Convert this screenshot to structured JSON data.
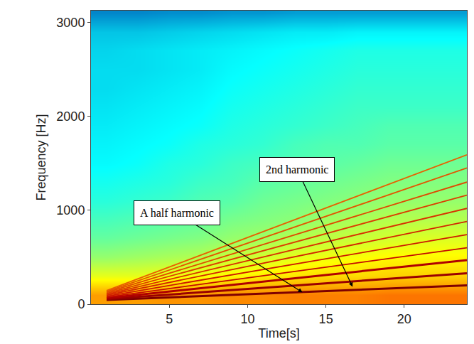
{
  "chart_data": {
    "type": "heatmap",
    "xlabel": "Time[s]",
    "ylabel": "Frequency [Hz]",
    "xlim": [
      0,
      24
    ],
    "ylim": [
      0,
      3125
    ],
    "xticks": [
      5,
      10,
      15,
      20
    ],
    "yticks": [
      0,
      1000,
      2000,
      3000
    ],
    "grid": false,
    "color": "Jet",
    "heatmap": {
      "x": [
        1,
        3,
        5,
        7,
        9,
        11,
        13,
        15,
        17,
        19,
        21,
        23
      ],
      "y": [
        100,
        300,
        500,
        700,
        900,
        1100,
        1300,
        1500,
        1700,
        1900,
        2100,
        2300,
        2500,
        2700,
        2900,
        3100
      ],
      "zlim": [
        0,
        10
      ],
      "z": [
        [
          7.2,
          7.2,
          7.3,
          7.3,
          7.4,
          7.4,
          7.5,
          7.5,
          7.5,
          7.6,
          7.6,
          7.6
        ],
        [
          6.0,
          6.0,
          6.1,
          6.2,
          6.3,
          6.4,
          6.5,
          6.6,
          6.6,
          6.7,
          6.7,
          6.7
        ],
        [
          5.2,
          5.3,
          5.4,
          5.5,
          5.7,
          5.8,
          6.0,
          6.1,
          6.2,
          6.3,
          6.3,
          6.3
        ],
        [
          4.7,
          4.8,
          4.9,
          5.0,
          5.2,
          5.3,
          5.5,
          5.6,
          5.7,
          5.8,
          5.9,
          5.9
        ],
        [
          4.4,
          4.5,
          4.6,
          4.7,
          4.9,
          5.0,
          5.1,
          5.3,
          5.4,
          5.5,
          5.5,
          5.5
        ],
        [
          4.1,
          4.2,
          4.3,
          4.5,
          4.6,
          4.8,
          4.9,
          5.0,
          5.1,
          5.2,
          5.2,
          5.2
        ],
        [
          3.9,
          4.0,
          4.1,
          4.3,
          4.4,
          4.6,
          4.7,
          4.8,
          4.9,
          5.0,
          5.0,
          5.0
        ],
        [
          3.7,
          3.8,
          4.0,
          4.1,
          4.3,
          4.4,
          4.5,
          4.6,
          4.7,
          4.8,
          4.8,
          4.8
        ],
        [
          3.6,
          3.7,
          3.8,
          4.0,
          4.1,
          4.2,
          4.4,
          4.5,
          4.5,
          4.6,
          4.6,
          4.6
        ],
        [
          3.5,
          3.6,
          3.7,
          3.8,
          4.0,
          4.1,
          4.2,
          4.3,
          4.4,
          4.5,
          4.5,
          4.5
        ],
        [
          3.4,
          3.5,
          3.6,
          3.7,
          3.9,
          4.0,
          4.1,
          4.2,
          4.3,
          4.3,
          4.3,
          4.3
        ],
        [
          3.3,
          3.4,
          3.5,
          3.6,
          3.8,
          3.9,
          4.0,
          4.1,
          4.2,
          4.2,
          4.2,
          4.2
        ],
        [
          3.3,
          3.3,
          3.4,
          3.5,
          3.7,
          3.8,
          3.9,
          4.0,
          4.1,
          4.1,
          4.1,
          4.1
        ],
        [
          3.2,
          3.3,
          3.4,
          3.5,
          3.6,
          3.7,
          3.8,
          3.9,
          4.0,
          4.0,
          4.0,
          4.0
        ],
        [
          3.0,
          3.0,
          3.1,
          3.2,
          3.3,
          3.4,
          3.5,
          3.5,
          3.6,
          3.6,
          3.6,
          3.6
        ],
        [
          2.2,
          2.2,
          2.3,
          2.3,
          2.4,
          2.4,
          2.5,
          2.5,
          2.5,
          2.5,
          2.5,
          2.5
        ]
      ]
    },
    "x": [
      1,
      24
    ],
    "series": [
      {
        "type": "line",
        "color": "#7f0000",
        "values": [
          45,
          200
        ]
      },
      {
        "type": "line",
        "color": "#9a0000",
        "values": [
          55,
          330
        ]
      },
      {
        "type": "line",
        "color": "#b00000",
        "values": [
          65,
          470
        ]
      },
      {
        "type": "line",
        "color": "#c40a00",
        "values": [
          75,
          600
        ]
      },
      {
        "type": "line",
        "color": "#cc1800",
        "values": [
          85,
          740
        ]
      },
      {
        "type": "line",
        "color": "#d22400",
        "values": [
          95,
          880
        ]
      },
      {
        "type": "line",
        "color": "#d83000",
        "values": [
          105,
          1020
        ]
      },
      {
        "type": "line",
        "color": "#dc3c00",
        "values": [
          115,
          1160
        ]
      },
      {
        "type": "line",
        "color": "#e04800",
        "values": [
          125,
          1300
        ]
      },
      {
        "type": "line",
        "color": "#e45400",
        "values": [
          135,
          1450
        ]
      },
      {
        "type": "line",
        "color": "#e86000",
        "values": [
          145,
          1590
        ]
      }
    ],
    "annotations": [
      {
        "text": "A half harmonic",
        "x": 13.5,
        "y": 126
      },
      {
        "text": "2nd harmonic",
        "x": 16.7,
        "y": 186
      }
    ]
  }
}
